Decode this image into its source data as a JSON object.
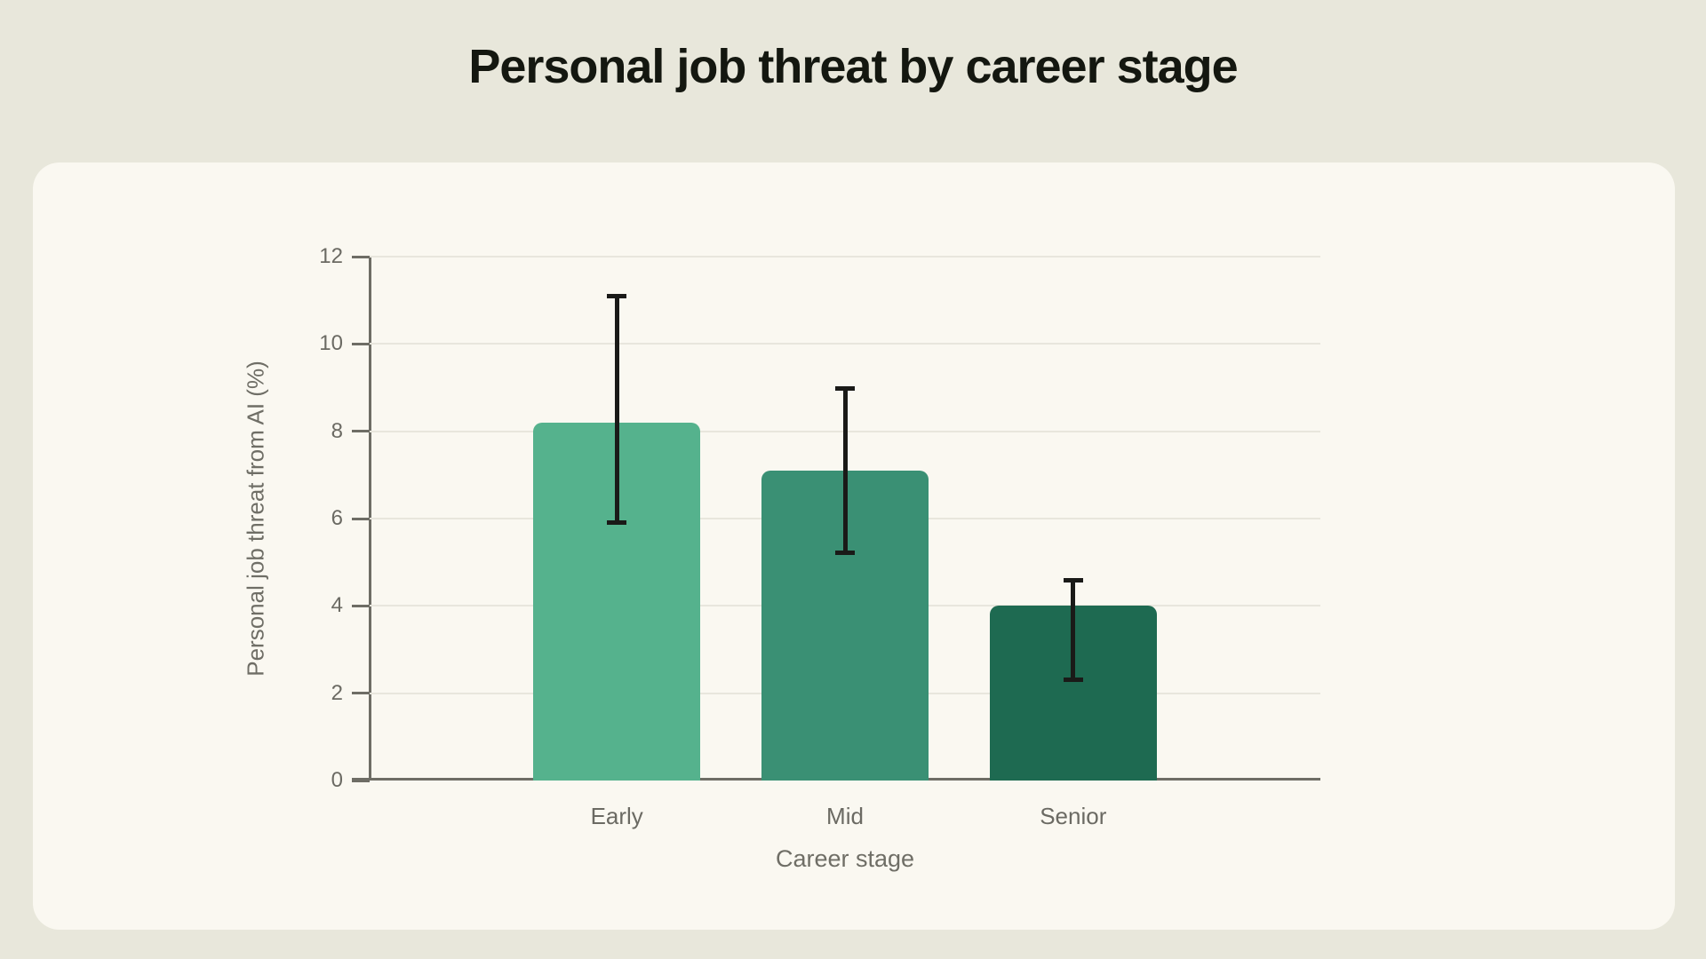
{
  "colors": {
    "page_bg": "#e8e7db",
    "card_bg": "#faf8f1",
    "grid": "#e8e6dd",
    "axis": "#6e6d65",
    "tick_text": "#6b6a63",
    "axis_title_text": "#6f6e66",
    "title_text": "#141710",
    "error_bar": "#1a1a18"
  },
  "chart_data": {
    "type": "bar",
    "title": "Personal job threat by career stage",
    "xlabel": "Career stage",
    "ylabel": "Personal job threat from AI (%)",
    "categories": [
      "Early",
      "Mid",
      "Senior"
    ],
    "values": [
      8.2,
      7.1,
      4.0
    ],
    "error_low": [
      5.9,
      5.2,
      2.3
    ],
    "error_high": [
      11.1,
      9.0,
      4.6
    ],
    "ylim": [
      0,
      12
    ],
    "yticks": [
      0,
      2,
      4,
      6,
      8,
      10,
      12
    ],
    "grid": true,
    "legend": false,
    "bar_colors": [
      "#55b28d",
      "#3a9074",
      "#1e6a51"
    ]
  }
}
